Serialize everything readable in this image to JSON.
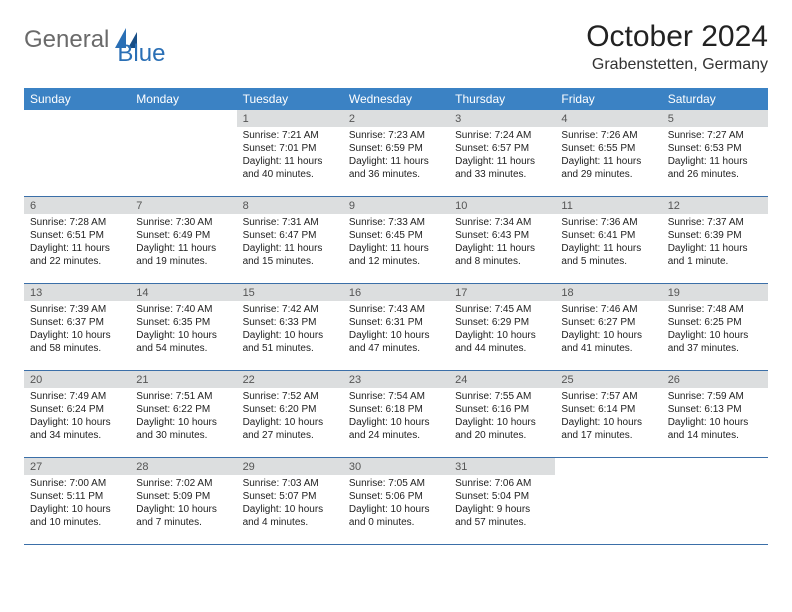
{
  "colors": {
    "header_bg": "#3b82c4",
    "header_text": "#ffffff",
    "daynum_bg": "#dcdedf",
    "daynum_text": "#555555",
    "body_text": "#222222",
    "rule": "#3b6fa8",
    "logo_gray": "#6a6a6a",
    "logo_blue": "#2a6fb5",
    "page_bg": "#ffffff"
  },
  "logo": {
    "general": "General",
    "blue": "Blue"
  },
  "title": "October 2024",
  "location": "Grabenstetten, Germany",
  "day_names": [
    "Sunday",
    "Monday",
    "Tuesday",
    "Wednesday",
    "Thursday",
    "Friday",
    "Saturday"
  ],
  "weeks": [
    [
      {
        "n": "",
        "sunrise": "",
        "sunset": "",
        "daylight": ""
      },
      {
        "n": "",
        "sunrise": "",
        "sunset": "",
        "daylight": ""
      },
      {
        "n": "1",
        "sunrise": "Sunrise: 7:21 AM",
        "sunset": "Sunset: 7:01 PM",
        "daylight": "Daylight: 11 hours and 40 minutes."
      },
      {
        "n": "2",
        "sunrise": "Sunrise: 7:23 AM",
        "sunset": "Sunset: 6:59 PM",
        "daylight": "Daylight: 11 hours and 36 minutes."
      },
      {
        "n": "3",
        "sunrise": "Sunrise: 7:24 AM",
        "sunset": "Sunset: 6:57 PM",
        "daylight": "Daylight: 11 hours and 33 minutes."
      },
      {
        "n": "4",
        "sunrise": "Sunrise: 7:26 AM",
        "sunset": "Sunset: 6:55 PM",
        "daylight": "Daylight: 11 hours and 29 minutes."
      },
      {
        "n": "5",
        "sunrise": "Sunrise: 7:27 AM",
        "sunset": "Sunset: 6:53 PM",
        "daylight": "Daylight: 11 hours and 26 minutes."
      }
    ],
    [
      {
        "n": "6",
        "sunrise": "Sunrise: 7:28 AM",
        "sunset": "Sunset: 6:51 PM",
        "daylight": "Daylight: 11 hours and 22 minutes."
      },
      {
        "n": "7",
        "sunrise": "Sunrise: 7:30 AM",
        "sunset": "Sunset: 6:49 PM",
        "daylight": "Daylight: 11 hours and 19 minutes."
      },
      {
        "n": "8",
        "sunrise": "Sunrise: 7:31 AM",
        "sunset": "Sunset: 6:47 PM",
        "daylight": "Daylight: 11 hours and 15 minutes."
      },
      {
        "n": "9",
        "sunrise": "Sunrise: 7:33 AM",
        "sunset": "Sunset: 6:45 PM",
        "daylight": "Daylight: 11 hours and 12 minutes."
      },
      {
        "n": "10",
        "sunrise": "Sunrise: 7:34 AM",
        "sunset": "Sunset: 6:43 PM",
        "daylight": "Daylight: 11 hours and 8 minutes."
      },
      {
        "n": "11",
        "sunrise": "Sunrise: 7:36 AM",
        "sunset": "Sunset: 6:41 PM",
        "daylight": "Daylight: 11 hours and 5 minutes."
      },
      {
        "n": "12",
        "sunrise": "Sunrise: 7:37 AM",
        "sunset": "Sunset: 6:39 PM",
        "daylight": "Daylight: 11 hours and 1 minute."
      }
    ],
    [
      {
        "n": "13",
        "sunrise": "Sunrise: 7:39 AM",
        "sunset": "Sunset: 6:37 PM",
        "daylight": "Daylight: 10 hours and 58 minutes."
      },
      {
        "n": "14",
        "sunrise": "Sunrise: 7:40 AM",
        "sunset": "Sunset: 6:35 PM",
        "daylight": "Daylight: 10 hours and 54 minutes."
      },
      {
        "n": "15",
        "sunrise": "Sunrise: 7:42 AM",
        "sunset": "Sunset: 6:33 PM",
        "daylight": "Daylight: 10 hours and 51 minutes."
      },
      {
        "n": "16",
        "sunrise": "Sunrise: 7:43 AM",
        "sunset": "Sunset: 6:31 PM",
        "daylight": "Daylight: 10 hours and 47 minutes."
      },
      {
        "n": "17",
        "sunrise": "Sunrise: 7:45 AM",
        "sunset": "Sunset: 6:29 PM",
        "daylight": "Daylight: 10 hours and 44 minutes."
      },
      {
        "n": "18",
        "sunrise": "Sunrise: 7:46 AM",
        "sunset": "Sunset: 6:27 PM",
        "daylight": "Daylight: 10 hours and 41 minutes."
      },
      {
        "n": "19",
        "sunrise": "Sunrise: 7:48 AM",
        "sunset": "Sunset: 6:25 PM",
        "daylight": "Daylight: 10 hours and 37 minutes."
      }
    ],
    [
      {
        "n": "20",
        "sunrise": "Sunrise: 7:49 AM",
        "sunset": "Sunset: 6:24 PM",
        "daylight": "Daylight: 10 hours and 34 minutes."
      },
      {
        "n": "21",
        "sunrise": "Sunrise: 7:51 AM",
        "sunset": "Sunset: 6:22 PM",
        "daylight": "Daylight: 10 hours and 30 minutes."
      },
      {
        "n": "22",
        "sunrise": "Sunrise: 7:52 AM",
        "sunset": "Sunset: 6:20 PM",
        "daylight": "Daylight: 10 hours and 27 minutes."
      },
      {
        "n": "23",
        "sunrise": "Sunrise: 7:54 AM",
        "sunset": "Sunset: 6:18 PM",
        "daylight": "Daylight: 10 hours and 24 minutes."
      },
      {
        "n": "24",
        "sunrise": "Sunrise: 7:55 AM",
        "sunset": "Sunset: 6:16 PM",
        "daylight": "Daylight: 10 hours and 20 minutes."
      },
      {
        "n": "25",
        "sunrise": "Sunrise: 7:57 AM",
        "sunset": "Sunset: 6:14 PM",
        "daylight": "Daylight: 10 hours and 17 minutes."
      },
      {
        "n": "26",
        "sunrise": "Sunrise: 7:59 AM",
        "sunset": "Sunset: 6:13 PM",
        "daylight": "Daylight: 10 hours and 14 minutes."
      }
    ],
    [
      {
        "n": "27",
        "sunrise": "Sunrise: 7:00 AM",
        "sunset": "Sunset: 5:11 PM",
        "daylight": "Daylight: 10 hours and 10 minutes."
      },
      {
        "n": "28",
        "sunrise": "Sunrise: 7:02 AM",
        "sunset": "Sunset: 5:09 PM",
        "daylight": "Daylight: 10 hours and 7 minutes."
      },
      {
        "n": "29",
        "sunrise": "Sunrise: 7:03 AM",
        "sunset": "Sunset: 5:07 PM",
        "daylight": "Daylight: 10 hours and 4 minutes."
      },
      {
        "n": "30",
        "sunrise": "Sunrise: 7:05 AM",
        "sunset": "Sunset: 5:06 PM",
        "daylight": "Daylight: 10 hours and 0 minutes."
      },
      {
        "n": "31",
        "sunrise": "Sunrise: 7:06 AM",
        "sunset": "Sunset: 5:04 PM",
        "daylight": "Daylight: 9 hours and 57 minutes."
      },
      {
        "n": "",
        "sunrise": "",
        "sunset": "",
        "daylight": ""
      },
      {
        "n": "",
        "sunrise": "",
        "sunset": "",
        "daylight": ""
      }
    ]
  ]
}
